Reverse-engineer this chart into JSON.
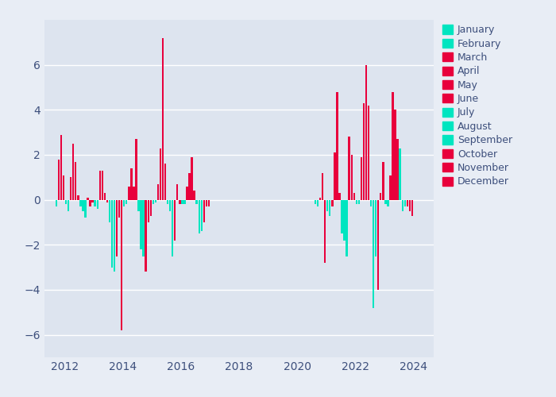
{
  "background_color": "#e8edf5",
  "plot_bg_color": "#dde4ef",
  "cyan_color": "#00e5c0",
  "red_color": "#e8003c",
  "ylim": [
    -7,
    8
  ],
  "yticks": [
    -6,
    -4,
    -2,
    0,
    2,
    4,
    6
  ],
  "xlim": [
    2011.3,
    2024.7
  ],
  "xticks": [
    2012,
    2014,
    2016,
    2018,
    2020,
    2022,
    2024
  ],
  "months": [
    "January",
    "February",
    "March",
    "April",
    "May",
    "June",
    "July",
    "August",
    "September",
    "October",
    "November",
    "December"
  ],
  "month_color_types": [
    "cyan",
    "cyan",
    "red",
    "red",
    "red",
    "red",
    "cyan",
    "cyan",
    "cyan",
    "red",
    "red",
    "red"
  ],
  "data": [
    {
      "year": 2011,
      "month": 9,
      "value": -0.3
    },
    {
      "year": 2011,
      "month": 10,
      "value": 1.8
    },
    {
      "year": 2011,
      "month": 11,
      "value": 2.9
    },
    {
      "year": 2011,
      "month": 12,
      "value": 1.1
    },
    {
      "year": 2012,
      "month": 1,
      "value": -0.2
    },
    {
      "year": 2012,
      "month": 2,
      "value": -0.5
    },
    {
      "year": 2012,
      "month": 3,
      "value": 1.0
    },
    {
      "year": 2012,
      "month": 4,
      "value": 2.5
    },
    {
      "year": 2012,
      "month": 5,
      "value": 1.7
    },
    {
      "year": 2012,
      "month": 6,
      "value": 0.2
    },
    {
      "year": 2012,
      "month": 7,
      "value": -0.3
    },
    {
      "year": 2012,
      "month": 8,
      "value": -0.5
    },
    {
      "year": 2012,
      "month": 9,
      "value": -0.8
    },
    {
      "year": 2012,
      "month": 10,
      "value": 0.1
    },
    {
      "year": 2012,
      "month": 11,
      "value": -0.3
    },
    {
      "year": 2012,
      "month": 12,
      "value": -0.1
    },
    {
      "year": 2013,
      "month": 1,
      "value": -0.3
    },
    {
      "year": 2013,
      "month": 2,
      "value": -0.4
    },
    {
      "year": 2013,
      "month": 3,
      "value": 1.3
    },
    {
      "year": 2013,
      "month": 4,
      "value": 1.3
    },
    {
      "year": 2013,
      "month": 5,
      "value": 0.3
    },
    {
      "year": 2013,
      "month": 6,
      "value": -0.1
    },
    {
      "year": 2013,
      "month": 7,
      "value": -1.0
    },
    {
      "year": 2013,
      "month": 8,
      "value": -3.0
    },
    {
      "year": 2013,
      "month": 9,
      "value": -3.2
    },
    {
      "year": 2013,
      "month": 10,
      "value": -2.5
    },
    {
      "year": 2013,
      "month": 11,
      "value": -0.8
    },
    {
      "year": 2013,
      "month": 12,
      "value": -5.8
    },
    {
      "year": 2014,
      "month": 1,
      "value": -0.3
    },
    {
      "year": 2014,
      "month": 2,
      "value": -0.2
    },
    {
      "year": 2014,
      "month": 3,
      "value": 0.6
    },
    {
      "year": 2014,
      "month": 4,
      "value": 1.4
    },
    {
      "year": 2014,
      "month": 5,
      "value": 0.6
    },
    {
      "year": 2014,
      "month": 6,
      "value": 2.7
    },
    {
      "year": 2014,
      "month": 7,
      "value": -0.5
    },
    {
      "year": 2014,
      "month": 8,
      "value": -2.2
    },
    {
      "year": 2014,
      "month": 9,
      "value": -2.5
    },
    {
      "year": 2014,
      "month": 10,
      "value": -3.2
    },
    {
      "year": 2014,
      "month": 11,
      "value": -1.0
    },
    {
      "year": 2014,
      "month": 12,
      "value": -0.7
    },
    {
      "year": 2015,
      "month": 1,
      "value": -0.2
    },
    {
      "year": 2015,
      "month": 2,
      "value": -0.1
    },
    {
      "year": 2015,
      "month": 3,
      "value": 0.7
    },
    {
      "year": 2015,
      "month": 4,
      "value": 2.3
    },
    {
      "year": 2015,
      "month": 5,
      "value": 7.2
    },
    {
      "year": 2015,
      "month": 6,
      "value": 1.6
    },
    {
      "year": 2015,
      "month": 7,
      "value": -0.2
    },
    {
      "year": 2015,
      "month": 8,
      "value": -0.5
    },
    {
      "year": 2015,
      "month": 9,
      "value": -2.5
    },
    {
      "year": 2015,
      "month": 10,
      "value": -1.8
    },
    {
      "year": 2015,
      "month": 11,
      "value": 0.7
    },
    {
      "year": 2015,
      "month": 12,
      "value": -0.2
    },
    {
      "year": 2016,
      "month": 1,
      "value": -0.2
    },
    {
      "year": 2016,
      "month": 2,
      "value": -0.2
    },
    {
      "year": 2016,
      "month": 3,
      "value": 0.6
    },
    {
      "year": 2016,
      "month": 4,
      "value": 1.2
    },
    {
      "year": 2016,
      "month": 5,
      "value": 1.9
    },
    {
      "year": 2016,
      "month": 6,
      "value": 0.4
    },
    {
      "year": 2016,
      "month": 7,
      "value": -0.2
    },
    {
      "year": 2016,
      "month": 8,
      "value": -1.5
    },
    {
      "year": 2016,
      "month": 9,
      "value": -1.4
    },
    {
      "year": 2016,
      "month": 10,
      "value": -1.0
    },
    {
      "year": 2016,
      "month": 11,
      "value": -0.3
    },
    {
      "year": 2016,
      "month": 12,
      "value": -0.3
    },
    {
      "year": 2020,
      "month": 8,
      "value": -0.2
    },
    {
      "year": 2020,
      "month": 9,
      "value": -0.3
    },
    {
      "year": 2020,
      "month": 10,
      "value": 0.1
    },
    {
      "year": 2020,
      "month": 11,
      "value": 1.2
    },
    {
      "year": 2020,
      "month": 12,
      "value": -2.8
    },
    {
      "year": 2021,
      "month": 1,
      "value": -0.5
    },
    {
      "year": 2021,
      "month": 2,
      "value": -0.7
    },
    {
      "year": 2021,
      "month": 3,
      "value": -0.3
    },
    {
      "year": 2021,
      "month": 4,
      "value": 2.1
    },
    {
      "year": 2021,
      "month": 5,
      "value": 4.8
    },
    {
      "year": 2021,
      "month": 6,
      "value": 0.3
    },
    {
      "year": 2021,
      "month": 7,
      "value": -1.5
    },
    {
      "year": 2021,
      "month": 8,
      "value": -1.8
    },
    {
      "year": 2021,
      "month": 9,
      "value": -2.5
    },
    {
      "year": 2021,
      "month": 10,
      "value": 2.8
    },
    {
      "year": 2021,
      "month": 11,
      "value": 2.0
    },
    {
      "year": 2021,
      "month": 12,
      "value": 0.3
    },
    {
      "year": 2022,
      "month": 1,
      "value": -0.2
    },
    {
      "year": 2022,
      "month": 2,
      "value": -0.2
    },
    {
      "year": 2022,
      "month": 3,
      "value": 1.9
    },
    {
      "year": 2022,
      "month": 4,
      "value": 4.3
    },
    {
      "year": 2022,
      "month": 5,
      "value": 6.0
    },
    {
      "year": 2022,
      "month": 6,
      "value": 4.2
    },
    {
      "year": 2022,
      "month": 7,
      "value": -0.3
    },
    {
      "year": 2022,
      "month": 8,
      "value": -4.8
    },
    {
      "year": 2022,
      "month": 9,
      "value": -2.5
    },
    {
      "year": 2022,
      "month": 10,
      "value": -4.0
    },
    {
      "year": 2022,
      "month": 11,
      "value": 0.3
    },
    {
      "year": 2022,
      "month": 12,
      "value": 1.7
    },
    {
      "year": 2023,
      "month": 1,
      "value": -0.2
    },
    {
      "year": 2023,
      "month": 2,
      "value": -0.3
    },
    {
      "year": 2023,
      "month": 3,
      "value": 1.1
    },
    {
      "year": 2023,
      "month": 4,
      "value": 4.8
    },
    {
      "year": 2023,
      "month": 5,
      "value": 4.0
    },
    {
      "year": 2023,
      "month": 6,
      "value": 2.7
    },
    {
      "year": 2023,
      "month": 7,
      "value": 2.3
    },
    {
      "year": 2023,
      "month": 8,
      "value": -0.5
    },
    {
      "year": 2023,
      "month": 9,
      "value": -0.3
    },
    {
      "year": 2023,
      "month": 10,
      "value": -0.3
    },
    {
      "year": 2023,
      "month": 11,
      "value": -0.5
    },
    {
      "year": 2023,
      "month": 12,
      "value": -0.7
    }
  ]
}
